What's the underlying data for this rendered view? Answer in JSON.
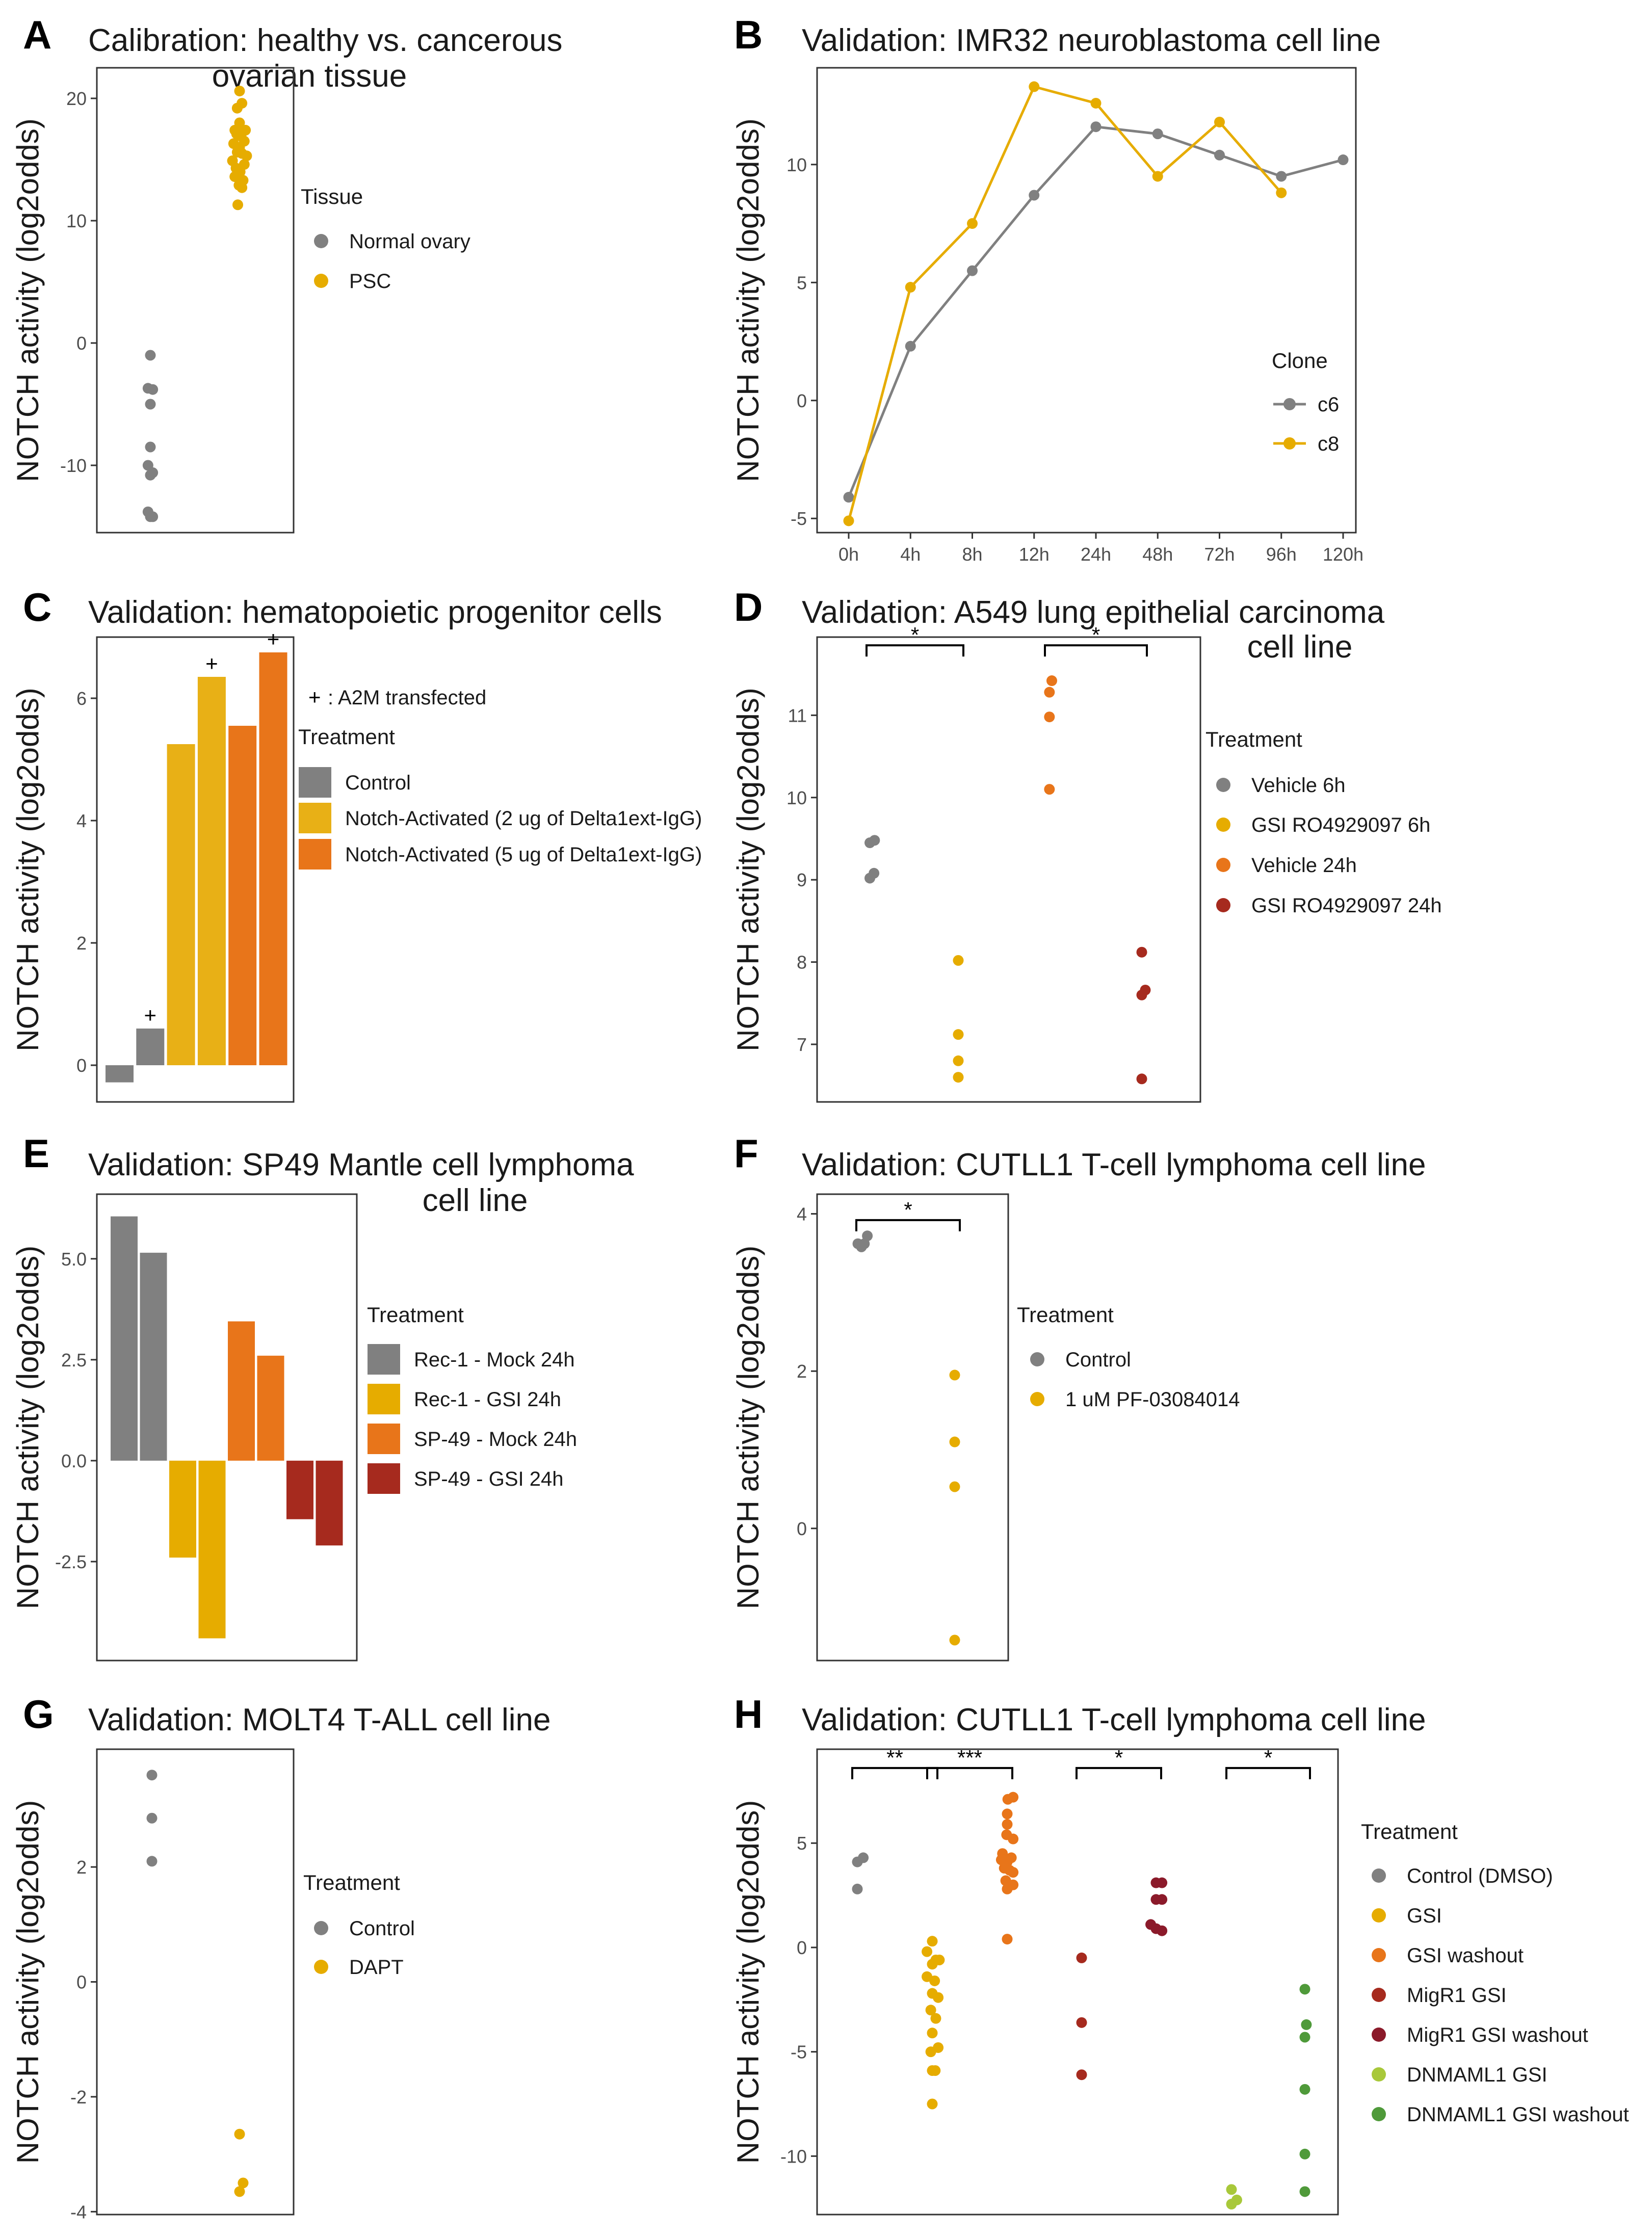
{
  "colors": {
    "grey": "#808080",
    "gold": "#E6AC00",
    "yellow": "#E8B016",
    "orange": "#E8751A",
    "red": "#A62A1E",
    "darkred": "#8B1A2A",
    "lime": "#A8C83A",
    "green": "#4F9A3A"
  },
  "chart_data": [
    {
      "panel": "A",
      "type": "scatter",
      "title": "Calibration: healthy vs. cancerous",
      "title2": "ovarian tissue",
      "ylabel": "NOTCH activity (log2odds)",
      "ylim": [
        -15.5,
        22.5
      ],
      "yticks": [
        20,
        10,
        0,
        -10
      ],
      "yticklabels": [
        "20",
        "10",
        "0",
        "-10"
      ],
      "legend_title": "Tissue",
      "legend": [
        {
          "label": "Normal ovary",
          "color": "#808080"
        },
        {
          "label": "PSC",
          "color": "#E6AC00"
        }
      ],
      "groups": [
        {
          "name": "Normal ovary",
          "color": "#808080",
          "points": [
            [
              0,
              -1
            ],
            [
              -0.08,
              -3.7
            ],
            [
              0.08,
              -3.8
            ],
            [
              0,
              -5
            ],
            [
              0,
              -8.5
            ],
            [
              -0.08,
              -10
            ],
            [
              0.08,
              -10.6
            ],
            [
              0,
              -10.8
            ],
            [
              -0.08,
              -13.8
            ],
            [
              0,
              -14.2
            ],
            [
              0.08,
              -14.2
            ]
          ]
        },
        {
          "name": "PSC",
          "color": "#E6AC00",
          "points": [
            [
              0,
              20.6
            ],
            [
              0.08,
              19.6
            ],
            [
              -0.08,
              19.2
            ],
            [
              0,
              18
            ],
            [
              -0.16,
              17.4
            ],
            [
              0.12,
              17.4
            ],
            [
              0.2,
              17.4
            ],
            [
              -0.1,
              17.1
            ],
            [
              0.05,
              16.9
            ],
            [
              -0.2,
              16.3
            ],
            [
              0.16,
              16.5
            ],
            [
              0,
              16
            ],
            [
              -0.08,
              15.6
            ],
            [
              0.08,
              15.5
            ],
            [
              0.24,
              15.3
            ],
            [
              -0.24,
              14.9
            ],
            [
              0.16,
              14.6
            ],
            [
              -0.12,
              14.3
            ],
            [
              0.02,
              14
            ],
            [
              -0.16,
              13.6
            ],
            [
              0.12,
              13.3
            ],
            [
              -0.02,
              12.9
            ],
            [
              0.08,
              12.7
            ],
            [
              -0.06,
              11.3
            ]
          ]
        }
      ]
    },
    {
      "panel": "B",
      "type": "line",
      "title": "Validation: IMR32 neuroblastoma cell line",
      "ylabel": "NOTCH activity (log2odds)",
      "categories": [
        "0h",
        "4h",
        "8h",
        "12h",
        "24h",
        "48h",
        "72h",
        "96h",
        "120h"
      ],
      "ylim": [
        -5.6,
        14.1
      ],
      "yticks": [
        10,
        5,
        0,
        -5
      ],
      "yticklabels": [
        "10",
        "5",
        "0",
        "-5"
      ],
      "legend_title": "Clone",
      "series": [
        {
          "name": "c6",
          "color": "#808080",
          "values": [
            -4.1,
            2.3,
            5.5,
            8.7,
            11.6,
            11.3,
            10.4,
            9.5,
            10.2
          ]
        },
        {
          "name": "c8",
          "color": "#E6AC00",
          "values": [
            -5.1,
            4.8,
            7.5,
            13.3,
            12.6,
            9.5,
            11.8,
            8.8,
            null
          ]
        }
      ]
    },
    {
      "panel": "C",
      "type": "bar",
      "title": "Validation: hematopoietic progenitor cells",
      "ylabel": "NOTCH activity (log2odds)",
      "ylim": [
        -0.6,
        7.0
      ],
      "yticks": [
        6,
        4,
        2,
        0
      ],
      "yticklabels": [
        "6",
        "4",
        "2",
        "0"
      ],
      "legend_title": "Treatment",
      "legend_note_symbol": "+",
      "legend_note": ": A2M transfected",
      "legend": [
        {
          "label": "Control",
          "color": "#808080"
        },
        {
          "label": "Notch-Activated (2 ug of Delta1ext-IgG)",
          "color": "#E8B016"
        },
        {
          "label": "Notch-Activated (5 ug of Delta1ext-IgG)",
          "color": "#E8751A"
        }
      ],
      "bars": [
        {
          "value": -0.28,
          "color": "#808080",
          "plus": ""
        },
        {
          "value": 0.6,
          "color": "#808080",
          "plus": "+"
        },
        {
          "value": 5.25,
          "color": "#E8B016",
          "plus": ""
        },
        {
          "value": 6.35,
          "color": "#E8B016",
          "plus": "+"
        },
        {
          "value": 5.55,
          "color": "#E8751A",
          "plus": ""
        },
        {
          "value": 6.75,
          "color": "#E8751A",
          "plus": "+"
        }
      ]
    },
    {
      "panel": "D",
      "type": "scatter",
      "title": "Validation: A549 lung epithelial carcinoma",
      "title2": "cell line",
      "ylabel": "NOTCH activity (log2odds)",
      "ylim": [
        6.3,
        11.95
      ],
      "yticks": [
        11,
        10,
        9,
        8,
        7
      ],
      "yticklabels": [
        "11",
        "10",
        "9",
        "8",
        "7"
      ],
      "legend_title": "Treatment",
      "legend": [
        {
          "label": "Vehicle 6h",
          "color": "#808080"
        },
        {
          "label": "GSI RO4929097 6h",
          "color": "#E6AC00"
        },
        {
          "label": "Vehicle 24h",
          "color": "#E8751A"
        },
        {
          "label": "GSI RO4929097 24h",
          "color": "#A62A1E"
        }
      ],
      "groups": [
        {
          "name": "Vehicle 6h",
          "color": "#808080",
          "points": [
            [
              -0.06,
              9.45
            ],
            [
              0.1,
              9.48
            ],
            [
              0.08,
              9.08
            ],
            [
              -0.06,
              9.02
            ]
          ]
        },
        {
          "name": "GSI RO4929097 6h",
          "color": "#E6AC00",
          "points": [
            [
              0,
              8.02
            ],
            [
              0,
              7.12
            ],
            [
              0,
              6.8
            ],
            [
              0,
              6.6
            ]
          ]
        },
        {
          "name": "Vehicle 24h",
          "color": "#E8751A",
          "points": [
            [
              0.06,
              11.42
            ],
            [
              -0.02,
              11.28
            ],
            [
              -0.02,
              10.98
            ],
            [
              -0.02,
              10.1
            ]
          ]
        },
        {
          "name": "GSI RO4929097 24h",
          "color": "#A62A1E",
          "points": [
            [
              0,
              8.12
            ],
            [
              0.12,
              7.66
            ],
            [
              0,
              7.6
            ],
            [
              0,
              6.58
            ]
          ]
        }
      ],
      "significance": [
        {
          "from": 0,
          "to": 1,
          "label": "*",
          "y": 11.85
        },
        {
          "from": 2,
          "to": 3,
          "label": "*",
          "y": 11.85
        }
      ]
    },
    {
      "panel": "E",
      "type": "bar",
      "title": "Validation: SP49 Mantle cell lymphoma",
      "title2": "cell line",
      "ylabel": "NOTCH activity (log2odds)",
      "ylim": [
        -4.95,
        6.6
      ],
      "yticks": [
        5.0,
        2.5,
        0.0,
        -2.5
      ],
      "yticklabels": [
        "5.0",
        "2.5",
        "0.0",
        "-2.5"
      ],
      "legend_title": "Treatment",
      "legend": [
        {
          "label": "Rec-1 - Mock 24h",
          "color": "#808080"
        },
        {
          "label": "Rec-1 - GSI 24h",
          "color": "#E6AC00"
        },
        {
          "label": "SP-49 - Mock 24h",
          "color": "#E8751A"
        },
        {
          "label": "SP-49 - GSI 24h",
          "color": "#A62A1E"
        }
      ],
      "bars": [
        {
          "value": 6.05,
          "color": "#808080"
        },
        {
          "value": 5.15,
          "color": "#808080"
        },
        {
          "value": -2.4,
          "color": "#E6AC00"
        },
        {
          "value": -4.4,
          "color": "#E6AC00"
        },
        {
          "value": 3.45,
          "color": "#E8751A"
        },
        {
          "value": 2.6,
          "color": "#E8751A"
        },
        {
          "value": -1.45,
          "color": "#A62A1E"
        },
        {
          "value": -2.1,
          "color": "#A62A1E"
        }
      ]
    },
    {
      "panel": "F",
      "type": "scatter",
      "title": "Validation: CUTLL1 T-cell lymphoma cell line",
      "ylabel": "NOTCH activity (log2odds)",
      "ylim": [
        -1.68,
        4.25
      ],
      "yticks": [
        4,
        2,
        0
      ],
      "yticklabels": [
        "4",
        "2",
        "0"
      ],
      "legend_title": "Treatment",
      "legend": [
        {
          "label": "Control",
          "color": "#808080"
        },
        {
          "label": "1 uM PF-03084014",
          "color": "#E6AC00"
        }
      ],
      "groups": [
        {
          "name": "Control",
          "color": "#808080",
          "points": [
            [
              -0.12,
              3.62
            ],
            [
              0,
              3.58
            ],
            [
              0.1,
              3.62
            ],
            [
              0.2,
              3.72
            ]
          ]
        },
        {
          "name": "1 uM PF-03084014",
          "color": "#E6AC00",
          "points": [
            [
              0,
              1.95
            ],
            [
              0,
              1.1
            ],
            [
              0,
              0.53
            ],
            [
              0,
              -1.42
            ]
          ]
        }
      ],
      "significance": [
        {
          "from": 0,
          "to": 1,
          "label": "*",
          "y": 3.92
        }
      ]
    },
    {
      "panel": "G",
      "type": "scatter",
      "title": "Validation: MOLT4 T-ALL cell line",
      "ylabel": "NOTCH activity (log2odds)",
      "ylim": [
        -4.05,
        4.05
      ],
      "yticks": [
        2,
        0,
        -2,
        -4
      ],
      "yticklabels": [
        "2",
        "0",
        "-2",
        "-4"
      ],
      "legend_title": "Treatment",
      "legend": [
        {
          "label": "Control",
          "color": "#808080"
        },
        {
          "label": "DAPT",
          "color": "#E6AC00"
        }
      ],
      "groups": [
        {
          "name": "Control",
          "color": "#808080",
          "points": [
            [
              0,
              3.6
            ],
            [
              0,
              2.85
            ],
            [
              0,
              2.1
            ]
          ]
        },
        {
          "name": "DAPT",
          "color": "#E6AC00",
          "points": [
            [
              0,
              -2.65
            ],
            [
              0.12,
              -3.5
            ],
            [
              0,
              -3.65
            ]
          ]
        }
      ]
    },
    {
      "panel": "H",
      "type": "scatter",
      "title": "Validation: CUTLL1 T-cell lymphoma cell line",
      "ylabel": "NOTCH activity (log2odds)",
      "ylim": [
        -12.8,
        9.5
      ],
      "yticks": [
        5,
        0,
        -5,
        -10
      ],
      "yticklabels": [
        "5",
        "0",
        "-5",
        "-10"
      ],
      "legend_title": "Treatment",
      "legend": [
        {
          "label": "Control (DMSO)",
          "color": "#808080"
        },
        {
          "label": "GSI",
          "color": "#E6AC00"
        },
        {
          "label": "GSI washout",
          "color": "#E8751A"
        },
        {
          "label": "MigR1 GSI",
          "color": "#A62A1E"
        },
        {
          "label": "MigR1 GSI washout",
          "color": "#8B1A2A"
        },
        {
          "label": "DNMAML1 GSI",
          "color": "#A8C83A"
        },
        {
          "label": "DNMAML1 GSI washout",
          "color": "#4F9A3A"
        }
      ],
      "groups": [
        {
          "name": "Control (DMSO)",
          "color": "#808080",
          "points": [
            [
              0,
              4.1
            ],
            [
              0.2,
              4.3
            ],
            [
              0,
              2.8
            ]
          ]
        },
        {
          "name": "GSI",
          "color": "#E6AC00",
          "points": [
            [
              0,
              0.3
            ],
            [
              -0.18,
              -0.2
            ],
            [
              0.12,
              -0.6
            ],
            [
              0.24,
              -0.6
            ],
            [
              0,
              -0.8
            ],
            [
              -0.18,
              -1.4
            ],
            [
              0.08,
              -1.6
            ],
            [
              0,
              -2.2
            ],
            [
              0.2,
              -2.4
            ],
            [
              -0.05,
              -3
            ],
            [
              0.12,
              -3.4
            ],
            [
              0,
              -4.1
            ],
            [
              0.2,
              -4.8
            ],
            [
              -0.05,
              -5
            ],
            [
              0,
              -5.9
            ],
            [
              0.1,
              -5.9
            ],
            [
              0,
              -7.5
            ]
          ]
        },
        {
          "name": "GSI washout",
          "color": "#E8751A",
          "points": [
            [
              0.02,
              7.1
            ],
            [
              0.2,
              7.2
            ],
            [
              0,
              6.4
            ],
            [
              0,
              5.9
            ],
            [
              -0.02,
              5.4
            ],
            [
              0.2,
              5.2
            ],
            [
              -0.16,
              4.5
            ],
            [
              0.14,
              4.3
            ],
            [
              0,
              4.1
            ],
            [
              -0.2,
              4.2
            ],
            [
              -0.1,
              3.8
            ],
            [
              0.08,
              3.7
            ],
            [
              0.2,
              3.6
            ],
            [
              -0.05,
              3.2
            ],
            [
              0.2,
              3.0
            ],
            [
              0,
              2.8
            ],
            [
              0,
              0.4
            ]
          ]
        },
        {
          "name": "MigR1 GSI",
          "color": "#A62A1E",
          "points": [
            [
              0,
              -0.5
            ],
            [
              0,
              -3.6
            ],
            [
              0,
              -6.1
            ]
          ]
        },
        {
          "name": "MigR1 GSI washout",
          "color": "#8B1A2A",
          "points": [
            [
              0,
              3.1
            ],
            [
              0.2,
              3.1
            ],
            [
              0,
              2.3
            ],
            [
              0.2,
              2.3
            ],
            [
              -0.18,
              1.1
            ],
            [
              0,
              0.9
            ],
            [
              0.2,
              0.8
            ]
          ]
        },
        {
          "name": "DNMAML1 GSI",
          "color": "#A8C83A",
          "points": [
            [
              0,
              -11.6
            ],
            [
              0.18,
              -12.1
            ],
            [
              0,
              -12.3
            ]
          ]
        },
        {
          "name": "DNMAML1 GSI washout",
          "color": "#4F9A3A",
          "points": [
            [
              0,
              -2
            ],
            [
              0.05,
              -3.7
            ],
            [
              0,
              -4.3
            ],
            [
              0,
              -6.8
            ],
            [
              0,
              -9.9
            ],
            [
              0,
              -11.7
            ]
          ]
        }
      ],
      "significance": [
        {
          "from": 0,
          "to": 1,
          "label": "**",
          "y": 8.6
        },
        {
          "from": 1,
          "to": 2,
          "label": "***",
          "y": 8.6
        },
        {
          "from": 3,
          "to": 4,
          "label": "*",
          "y": 8.6
        },
        {
          "from": 5,
          "to": 6,
          "label": "*",
          "y": 8.6
        }
      ]
    }
  ]
}
